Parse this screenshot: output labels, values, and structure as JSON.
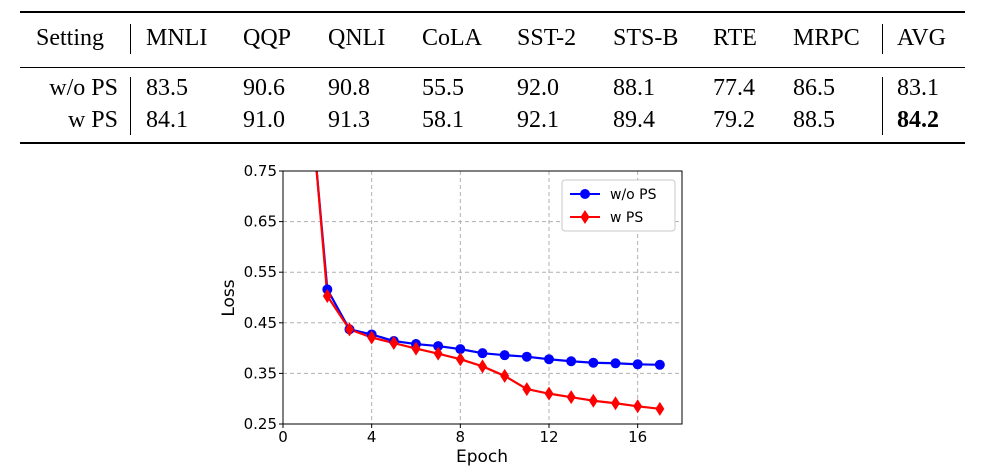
{
  "table": {
    "headers": [
      "Setting",
      "MNLI",
      "QQP",
      "QNLI",
      "CoLA",
      "SST-2",
      "STS-B",
      "RTE",
      "MRPC",
      "AVG"
    ],
    "rows": [
      {
        "setting": "w/o PS",
        "values": [
          "83.5",
          "90.6",
          "90.8",
          "55.5",
          "92.0",
          "88.1",
          "77.4",
          "86.5"
        ],
        "avg": "83.1"
      },
      {
        "setting": "w PS",
        "values": [
          "84.1",
          "91.0",
          "91.3",
          "58.1",
          "92.1",
          "89.4",
          "79.2",
          "88.5"
        ],
        "avg": "84.2"
      }
    ]
  },
  "chart_data": {
    "type": "line",
    "title": "",
    "xlabel": "Epoch",
    "ylabel": "Loss",
    "xlim": [
      0,
      18
    ],
    "ylim": [
      0.25,
      0.75
    ],
    "xticks": [
      0,
      4,
      8,
      12,
      16
    ],
    "yticks": [
      0.25,
      0.35,
      0.45,
      0.55,
      0.65,
      0.75
    ],
    "ytick_labels": [
      "0.25",
      "0.35",
      "0.45",
      "0.55",
      "0.65",
      "0.75"
    ],
    "grid": true,
    "legend_position": "top-right",
    "series": [
      {
        "name": "w/o PS",
        "color": "#0000ff",
        "marker": "circle",
        "x": [
          1.5,
          2,
          3,
          4,
          5,
          6,
          7,
          8,
          9,
          10,
          11,
          12,
          13,
          14,
          15,
          16,
          17
        ],
        "y": [
          0.76,
          0.516,
          0.437,
          0.427,
          0.414,
          0.408,
          0.404,
          0.398,
          0.39,
          0.386,
          0.383,
          0.378,
          0.374,
          0.371,
          0.37,
          0.368,
          0.367
        ],
        "marker_from_index": 1
      },
      {
        "name": "w PS",
        "color": "#ff0000",
        "marker": "diamond",
        "x": [
          1.5,
          2,
          3,
          4,
          5,
          6,
          7,
          8,
          9,
          10,
          11,
          12,
          13,
          14,
          15,
          16,
          17
        ],
        "y": [
          0.76,
          0.503,
          0.437,
          0.421,
          0.41,
          0.399,
          0.389,
          0.378,
          0.364,
          0.345,
          0.319,
          0.31,
          0.303,
          0.296,
          0.291,
          0.285,
          0.28
        ],
        "marker_from_index": 1
      }
    ]
  }
}
